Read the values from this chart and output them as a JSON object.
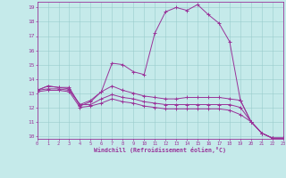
{
  "xlabel": "Windchill (Refroidissement éolien,°C)",
  "background_color": "#c5eaea",
  "line_color": "#993399",
  "grid_color": "#99cccc",
  "xlim": [
    0,
    23
  ],
  "ylim": [
    9.8,
    19.4
  ],
  "xticks": [
    0,
    1,
    2,
    3,
    4,
    5,
    6,
    7,
    8,
    9,
    10,
    11,
    12,
    13,
    14,
    15,
    16,
    17,
    18,
    19,
    20,
    21,
    22,
    23
  ],
  "yticks": [
    10,
    11,
    12,
    13,
    14,
    15,
    16,
    17,
    18,
    19
  ],
  "series": [
    {
      "x": [
        0,
        1,
        2,
        3,
        4,
        5,
        6,
        7,
        8,
        9,
        10,
        11,
        12,
        13,
        14,
        15,
        16,
        17,
        18,
        19,
        20,
        21,
        22,
        23
      ],
      "y": [
        13.2,
        13.5,
        13.4,
        13.4,
        12.1,
        12.4,
        13.1,
        15.1,
        15.0,
        14.5,
        14.3,
        17.2,
        18.7,
        19.0,
        18.8,
        19.2,
        18.5,
        17.9,
        16.6,
        12.5,
        11.0,
        10.2,
        9.85,
        9.85
      ]
    },
    {
      "x": [
        0,
        1,
        2,
        3,
        4,
        5,
        6,
        7,
        8,
        9,
        10,
        11,
        12,
        13,
        14,
        15,
        16,
        17,
        18,
        19,
        20,
        21,
        22,
        23
      ],
      "y": [
        13.2,
        13.5,
        13.4,
        13.3,
        12.2,
        12.5,
        13.1,
        13.5,
        13.2,
        13.0,
        12.8,
        12.7,
        12.6,
        12.6,
        12.7,
        12.7,
        12.7,
        12.7,
        12.6,
        12.5,
        11.0,
        10.2,
        9.85,
        9.85
      ]
    },
    {
      "x": [
        0,
        1,
        2,
        3,
        4,
        5,
        6,
        7,
        8,
        9,
        10,
        11,
        12,
        13,
        14,
        15,
        16,
        17,
        18,
        19,
        20,
        21,
        22,
        23
      ],
      "y": [
        13.2,
        13.3,
        13.3,
        13.2,
        12.2,
        12.2,
        12.6,
        12.9,
        12.7,
        12.6,
        12.4,
        12.3,
        12.2,
        12.2,
        12.2,
        12.2,
        12.2,
        12.2,
        12.2,
        12.0,
        11.0,
        10.2,
        9.85,
        9.85
      ]
    },
    {
      "x": [
        0,
        1,
        2,
        3,
        4,
        5,
        6,
        7,
        8,
        9,
        10,
        11,
        12,
        13,
        14,
        15,
        16,
        17,
        18,
        19,
        20,
        21,
        22,
        23
      ],
      "y": [
        13.1,
        13.2,
        13.2,
        13.1,
        12.0,
        12.1,
        12.3,
        12.6,
        12.4,
        12.3,
        12.1,
        12.0,
        11.9,
        11.9,
        11.9,
        11.9,
        11.9,
        11.9,
        11.8,
        11.5,
        11.0,
        10.2,
        9.85,
        9.85
      ]
    }
  ]
}
